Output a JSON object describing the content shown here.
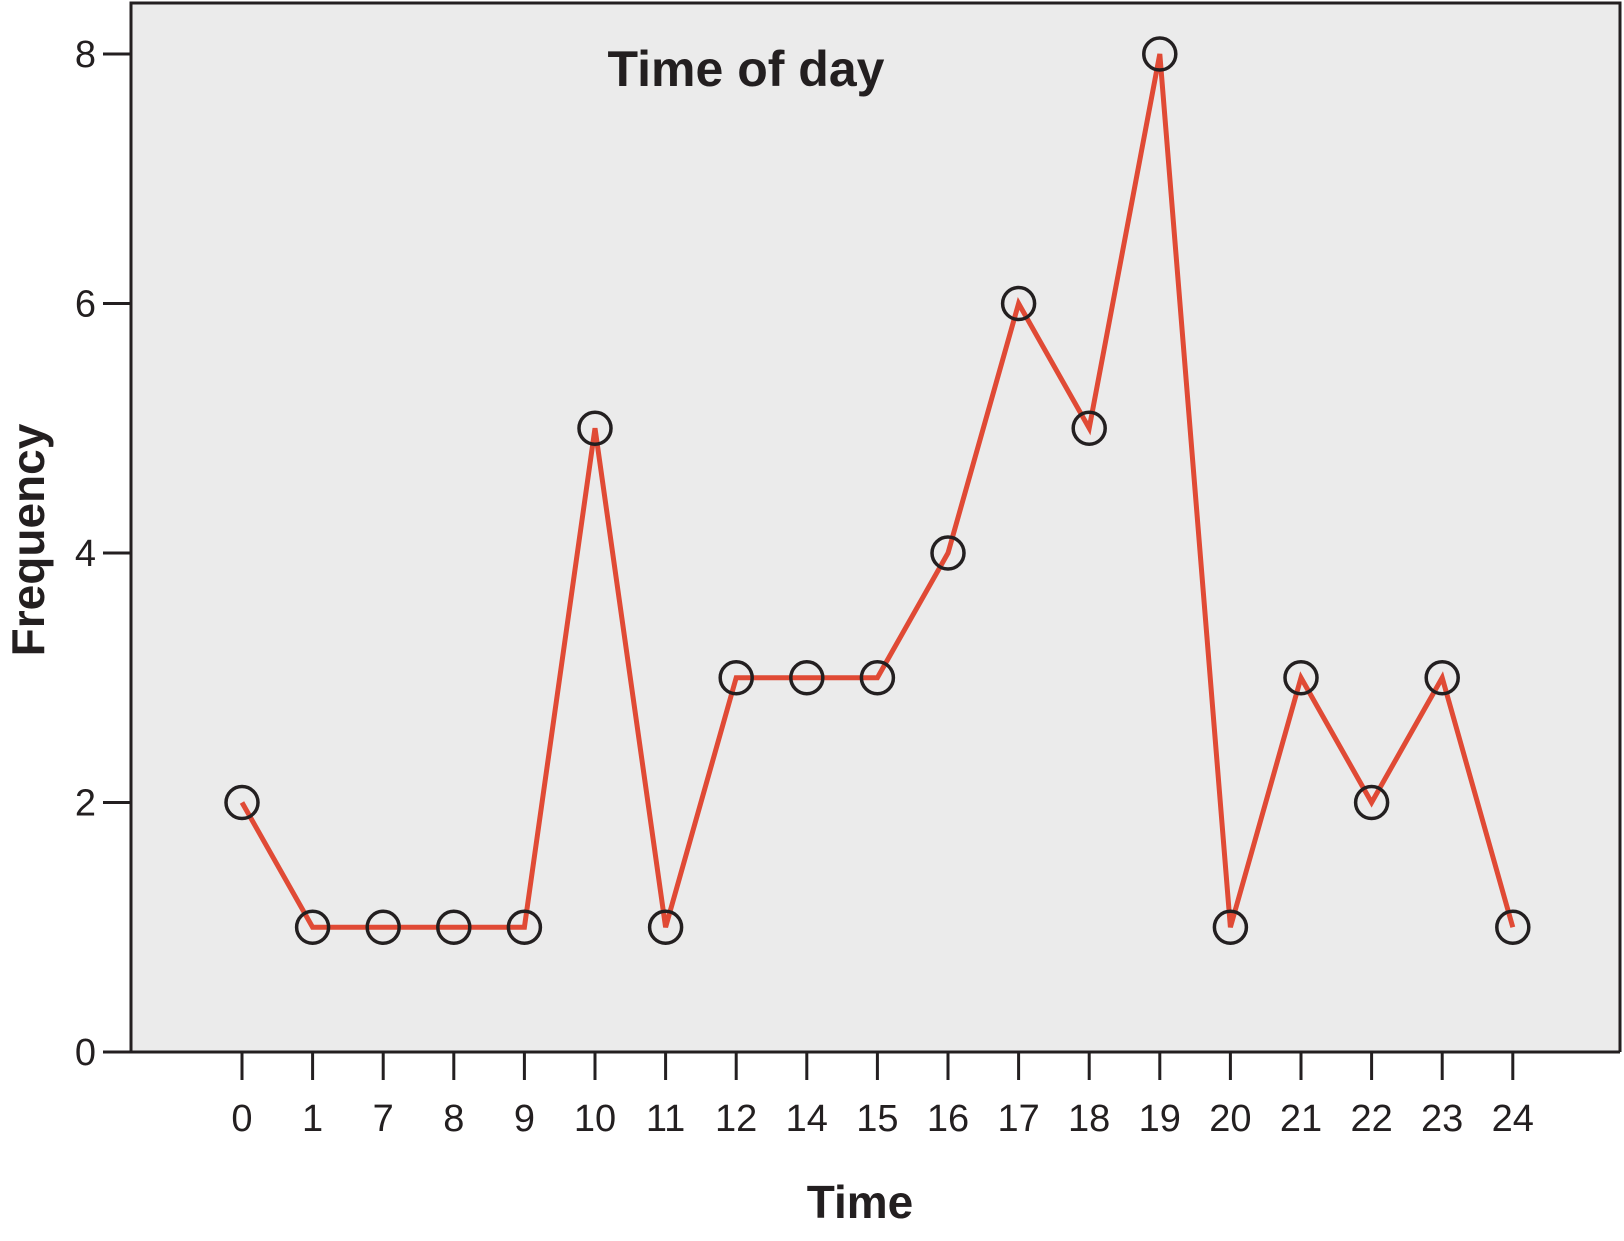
{
  "chart_data": {
    "type": "line",
    "title": "Time of day",
    "xlabel": "Time",
    "ylabel": "Frequency",
    "categories": [
      "0",
      "1",
      "7",
      "8",
      "9",
      "10",
      "11",
      "12",
      "14",
      "15",
      "16",
      "17",
      "18",
      "19",
      "20",
      "21",
      "22",
      "23",
      "24"
    ],
    "series": [
      {
        "values": [
          2,
          1,
          1,
          1,
          1,
          5,
          1,
          3,
          3,
          3,
          4,
          6,
          5,
          8,
          1,
          3,
          2,
          3,
          1
        ]
      }
    ],
    "ylim": [
      0,
      8
    ],
    "yticks": [
      0,
      2,
      4,
      6,
      8
    ],
    "grid": false,
    "legend": "none",
    "colors": {
      "plot_background": "#ebebeb",
      "line": "#e04a35",
      "marker": "#231f20",
      "axis": "#231f20"
    }
  }
}
